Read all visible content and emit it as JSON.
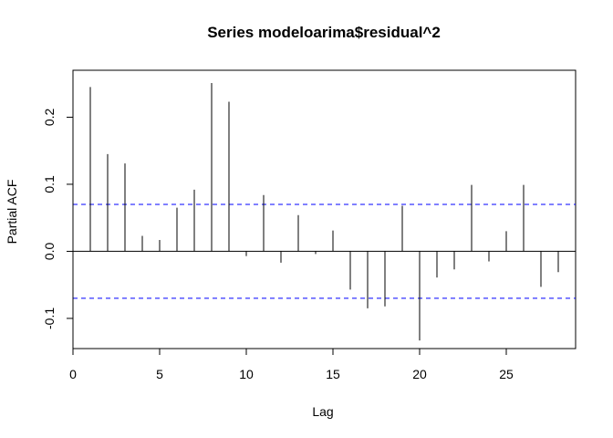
{
  "chart_data": {
    "type": "bar",
    "subtype": "partial-acf-spikes",
    "title": "Series  modeloarima$residual^2",
    "xlabel": "Lag",
    "ylabel": "Partial ACF",
    "xlim": [
      0,
      29
    ],
    "ylim": [
      -0.145,
      0.27
    ],
    "x_ticks": [
      0,
      5,
      10,
      15,
      20,
      25
    ],
    "x_tick_labels": [
      "0",
      "5",
      "10",
      "15",
      "20",
      "25"
    ],
    "y_ticks": [
      -0.1,
      0.0,
      0.1,
      0.2
    ],
    "y_tick_labels": [
      "-0.1",
      "0.0",
      "0.1",
      "0.2"
    ],
    "grid": false,
    "confidence_bound": 0.07,
    "bound_color": "#0000ff",
    "spike_color": "#000000",
    "x": [
      1,
      2,
      3,
      4,
      5,
      6,
      7,
      8,
      9,
      10,
      11,
      12,
      13,
      14,
      15,
      16,
      17,
      18,
      19,
      20,
      21,
      22,
      23,
      24,
      25,
      26,
      27,
      28
    ],
    "values": [
      0.245,
      0.145,
      0.131,
      0.023,
      0.017,
      0.065,
      0.092,
      0.251,
      0.223,
      -0.007,
      0.084,
      -0.017,
      0.054,
      -0.004,
      0.031,
      -0.057,
      -0.085,
      -0.082,
      0.068,
      -0.133,
      -0.039,
      -0.027,
      0.099,
      -0.015,
      0.03,
      0.099,
      -0.053,
      -0.031
    ]
  }
}
